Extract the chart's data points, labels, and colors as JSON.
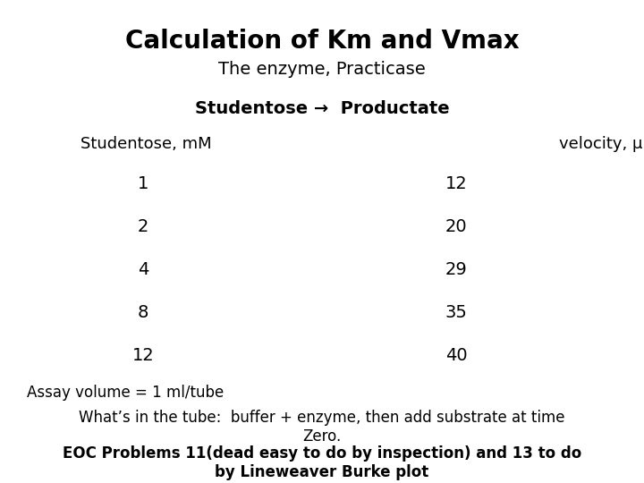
{
  "title": "Calculation of Km and Vmax",
  "subtitle": "The enzyme, Practicase",
  "reaction": "Studentose →  Productate",
  "col1_header": "Studentose, mM",
  "col2_header": "velocity, μmoles/ml/sec",
  "substrate": [
    1,
    2,
    4,
    8,
    12
  ],
  "velocity": [
    12,
    20,
    29,
    35,
    40
  ],
  "assay_note": "Assay volume = 1 ml/tube",
  "tube_note": "What’s in the tube:  buffer + enzyme, then add substrate at time\nZero.",
  "eoc_note": "EOC Problems 11(dead easy to do by inspection) and 13 to do\nby Lineweaver Burke plot",
  "bg_color": "#ffffff",
  "title_fontsize": 20,
  "subtitle_fontsize": 14,
  "reaction_fontsize": 14,
  "header_fontsize": 13,
  "data_fontsize": 14,
  "note_fontsize": 12,
  "eoc_fontsize": 12
}
